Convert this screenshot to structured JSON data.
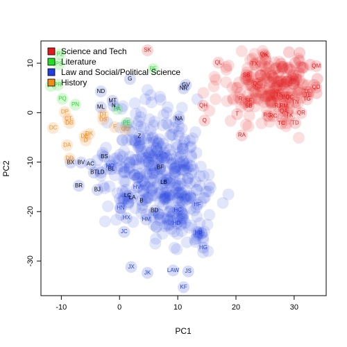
{
  "chart_data": {
    "type": "scatter",
    "xlabel": "PC1",
    "ylabel": "PC2",
    "xlim": [
      -13.5,
      35.5
    ],
    "ylim": [
      -37,
      14.5
    ],
    "xticks": [
      -10,
      0,
      10,
      20,
      30
    ],
    "yticks": [
      -30,
      -20,
      -10,
      0,
      10
    ],
    "grid": false,
    "legend_position": "top-left",
    "series": [
      {
        "name": "Science and Tech",
        "color": "#e31a1c"
      },
      {
        "name": "Literature",
        "color": "#22dd22"
      },
      {
        "name": "Law and Social/Political Science",
        "color": "#1f3fe0"
      },
      {
        "name": "History",
        "color": "#f08c1a"
      }
    ],
    "labels": [
      {
        "text": "SK",
        "x": 4.8,
        "y": 12.6,
        "s": 0
      },
      {
        "text": "DK",
        "x": 25,
        "y": 11.5,
        "s": 0
      },
      {
        "text": "OK",
        "x": 24.8,
        "y": 11.8,
        "s": 0
      },
      {
        "text": "QL",
        "x": 17,
        "y": 10.1,
        "s": 0
      },
      {
        "text": "TX",
        "x": 23.2,
        "y": 9.8,
        "s": 0
      },
      {
        "text": "QM",
        "x": 33.8,
        "y": 9.4,
        "s": 0
      },
      {
        "text": "SB",
        "x": 21.8,
        "y": 7.6,
        "s": 0
      },
      {
        "text": "QE",
        "x": 23.6,
        "y": 5.8,
        "s": 0
      },
      {
        "text": "QD",
        "x": 33.8,
        "y": 5.1,
        "s": 0
      },
      {
        "text": "TF",
        "x": 32.2,
        "y": 4.2,
        "s": 0
      },
      {
        "text": "TE",
        "x": 32.4,
        "y": 3.6,
        "s": 0
      },
      {
        "text": "TS",
        "x": 27.4,
        "y": 3.6,
        "s": 0
      },
      {
        "text": "BG",
        "x": 28.6,
        "y": 3.1,
        "s": 0
      },
      {
        "text": "QC",
        "x": 29.2,
        "y": 3.1,
        "s": 0
      },
      {
        "text": "TG",
        "x": 32.2,
        "y": 2.7,
        "s": 0
      },
      {
        "text": "R",
        "x": 20.8,
        "y": 2.7,
        "s": 0
      },
      {
        "text": "SF",
        "x": 22.2,
        "y": 2.4,
        "s": 0
      },
      {
        "text": "TN",
        "x": 30.2,
        "y": 2.1,
        "s": 0
      },
      {
        "text": "SB",
        "x": 22.2,
        "y": 1.3,
        "s": 0
      },
      {
        "text": "RJ",
        "x": 27.2,
        "y": 1.3,
        "s": 0
      },
      {
        "text": "RM",
        "x": 28.2,
        "y": 1.3,
        "s": 0
      },
      {
        "text": "QH",
        "x": 14.4,
        "y": 1.4,
        "s": 0
      },
      {
        "text": "QA",
        "x": 28.2,
        "y": 0.3,
        "s": 0
      },
      {
        "text": "QR",
        "x": 31.2,
        "y": -0.1,
        "s": 0
      },
      {
        "text": "T",
        "x": 20.2,
        "y": -0.3,
        "s": 0
      },
      {
        "text": "RG",
        "x": 25.4,
        "y": -0.6,
        "s": 0
      },
      {
        "text": "RC",
        "x": 26.4,
        "y": -0.7,
        "s": 0
      },
      {
        "text": "TK",
        "x": 29.2,
        "y": -0.6,
        "s": 0
      },
      {
        "text": "Q",
        "x": 14.6,
        "y": -1.6,
        "s": 0
      },
      {
        "text": "TC",
        "x": 27.8,
        "y": -2.2,
        "s": 0
      },
      {
        "text": "TD",
        "x": 30.2,
        "y": -2.1,
        "s": 0
      },
      {
        "text": "RA",
        "x": 21,
        "y": -4.6,
        "s": 0
      },
      {
        "text": "PZ",
        "x": -10.2,
        "y": 11.8,
        "s": 1
      },
      {
        "text": "PS",
        "x": -10.4,
        "y": 9.8,
        "s": 1
      },
      {
        "text": "PE",
        "x": 5.8,
        "y": 8.8,
        "s": 1
      },
      {
        "text": "PT",
        "x": -11.8,
        "y": 5.4,
        "s": 1
      },
      {
        "text": "PR",
        "x": -10.6,
        "y": 5.6,
        "s": 1
      },
      {
        "text": "PQ",
        "x": -9.8,
        "y": 2.8,
        "s": 1
      },
      {
        "text": "PN",
        "x": -7.6,
        "y": 1.6,
        "s": 1
      },
      {
        "text": "PA",
        "x": -0.4,
        "y": 0.7,
        "s": 1
      },
      {
        "text": "PE",
        "x": 1.2,
        "y": -2.1,
        "s": 1
      },
      {
        "text": "G",
        "x": 1.8,
        "y": 6.8,
        "s": 2
      },
      {
        "text": "GV",
        "x": 11.4,
        "y": 5.6,
        "s": 2
      },
      {
        "text": "NR",
        "x": 11,
        "y": 4.9,
        "s": 2
      },
      {
        "text": "ND",
        "x": -3.2,
        "y": 4.3,
        "s": 2
      },
      {
        "text": "MT",
        "x": -1.2,
        "y": 2.4,
        "s": 2
      },
      {
        "text": "N",
        "x": -1,
        "y": 1.4,
        "s": 2
      },
      {
        "text": "ML",
        "x": -3.2,
        "y": 1.1,
        "s": 2
      },
      {
        "text": "NA",
        "x": 10.2,
        "y": -1.3,
        "s": 2
      },
      {
        "text": "Z",
        "x": 3.4,
        "y": -4.8,
        "s": 2
      },
      {
        "text": "BS",
        "x": -2.6,
        "y": -8.9,
        "s": 2
      },
      {
        "text": "BX",
        "x": -8.4,
        "y": -10.1,
        "s": 2
      },
      {
        "text": "BV",
        "x": -6.6,
        "y": -10.1,
        "s": 2
      },
      {
        "text": "AC",
        "x": -5,
        "y": -10.4,
        "s": 2
      },
      {
        "text": "BT",
        "x": -4.4,
        "y": -12.1,
        "s": 2
      },
      {
        "text": "LD",
        "x": -3.2,
        "y": -12.1,
        "s": 2
      },
      {
        "text": "BL",
        "x": -1.4,
        "y": -11.4,
        "s": 2
      },
      {
        "text": "HQ",
        "x": -1.6,
        "y": -10.8,
        "s": 2
      },
      {
        "text": "BF",
        "x": 7,
        "y": -11.1,
        "s": 2
      },
      {
        "text": "BR",
        "x": -7,
        "y": -14.8,
        "s": 2
      },
      {
        "text": "BJ",
        "x": -3.8,
        "y": -15.6,
        "s": 2
      },
      {
        "text": "LB",
        "x": 7.6,
        "y": -14.1,
        "s": 2
      },
      {
        "text": "HV",
        "x": 3,
        "y": -15.1,
        "s": 2
      },
      {
        "text": "LC",
        "x": 1.4,
        "y": -16.8,
        "s": 2
      },
      {
        "text": "LA",
        "x": 2.2,
        "y": -17.2,
        "s": 2
      },
      {
        "text": "B",
        "x": 3.8,
        "y": -17.8,
        "s": 2
      },
      {
        "text": "HF",
        "x": 13.4,
        "y": -18.6,
        "s": 2
      },
      {
        "text": "HN",
        "x": 0.2,
        "y": -19.3,
        "s": 2
      },
      {
        "text": "BD",
        "x": 6,
        "y": -19.8,
        "s": 2
      },
      {
        "text": "HC",
        "x": 10,
        "y": -19.7,
        "s": 2
      },
      {
        "text": "HX",
        "x": 1.2,
        "y": -21.3,
        "s": 2
      },
      {
        "text": "HM",
        "x": 4.6,
        "y": -21.6,
        "s": 2
      },
      {
        "text": "HD",
        "x": 9.8,
        "y": -22.4,
        "s": 2
      },
      {
        "text": "JC",
        "x": 0.8,
        "y": -24.1,
        "s": 2
      },
      {
        "text": "HB",
        "x": 13.6,
        "y": -24.2,
        "s": 2
      },
      {
        "text": "HE",
        "x": 13.6,
        "y": -24.5,
        "s": 2
      },
      {
        "text": "HG",
        "x": 14.4,
        "y": -27.3,
        "s": 2
      },
      {
        "text": "JX",
        "x": 2,
        "y": -31.2,
        "s": 2
      },
      {
        "text": "JK",
        "x": 4.8,
        "y": -32.4,
        "s": 2
      },
      {
        "text": "LAW",
        "x": 9.2,
        "y": -31.9,
        "s": 2
      },
      {
        "text": "JS",
        "x": 11.8,
        "y": -32.1,
        "s": 2
      },
      {
        "text": "KF",
        "x": 11,
        "y": -35.3,
        "s": 2
      },
      {
        "text": "DP",
        "x": -9.4,
        "y": 0.1,
        "s": 3
      },
      {
        "text": "CT",
        "x": -8.8,
        "y": -1.3,
        "s": 3
      },
      {
        "text": "DG",
        "x": -8.6,
        "y": -2.1,
        "s": 3
      },
      {
        "text": "DT",
        "x": -2.8,
        "y": -0.4,
        "s": 3
      },
      {
        "text": "DS",
        "x": -2.8,
        "y": -1.4,
        "s": 3
      },
      {
        "text": "DC",
        "x": -11.4,
        "y": -3.1,
        "s": 3
      },
      {
        "text": "GC",
        "x": 1,
        "y": -3.4,
        "s": 3
      },
      {
        "text": "F",
        "x": -0.8,
        "y": -2.9,
        "s": 3
      },
      {
        "text": "DK",
        "x": -5.2,
        "y": -4.3,
        "s": 3
      },
      {
        "text": "DE",
        "x": -6,
        "y": -4.8,
        "s": 3
      },
      {
        "text": "D",
        "x": -5.8,
        "y": -5.6,
        "s": 3
      },
      {
        "text": "DA",
        "x": -9,
        "y": -6.6,
        "s": 3
      },
      {
        "text": "DD",
        "x": -8.6,
        "y": -9.3,
        "s": 3
      }
    ]
  }
}
